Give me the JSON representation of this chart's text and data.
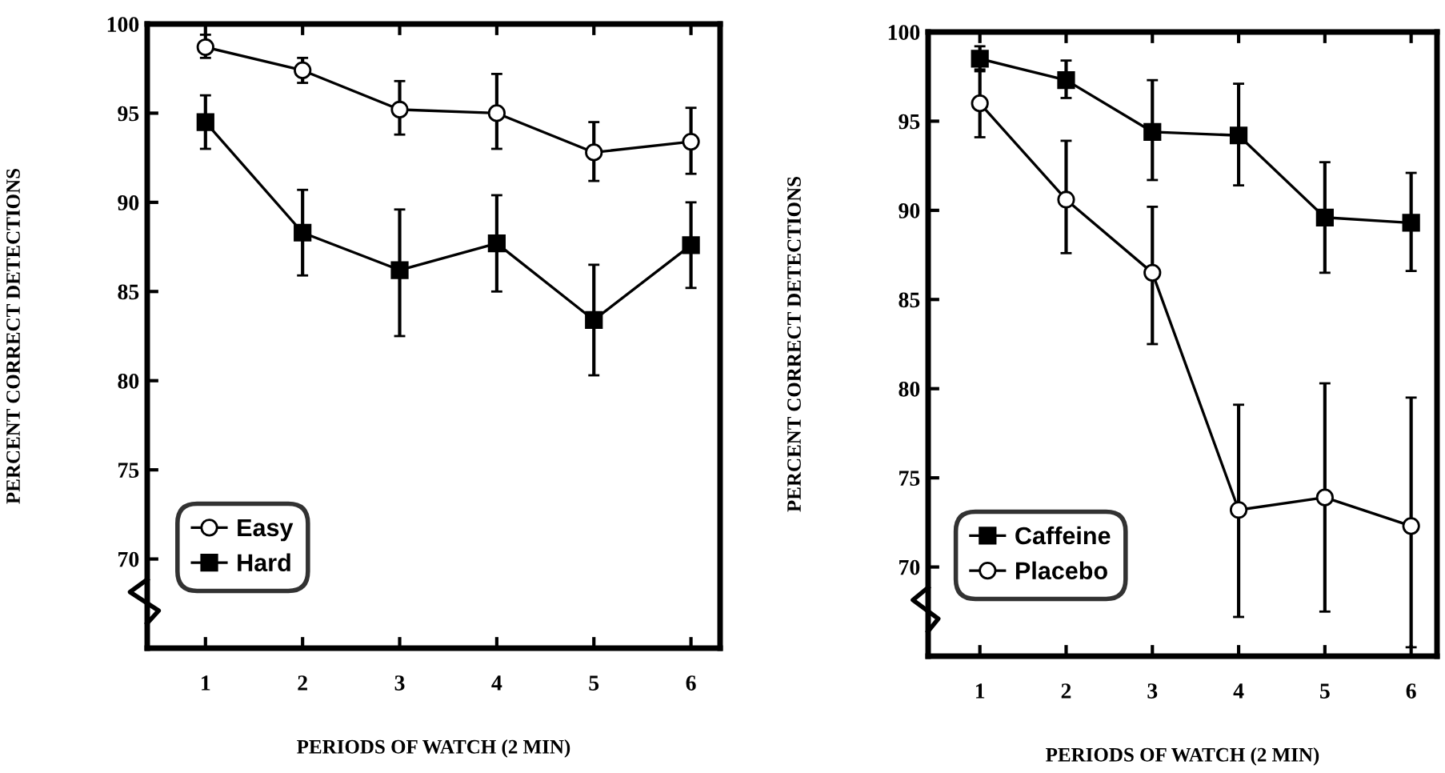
{
  "chart_data": [
    {
      "type": "line",
      "xlabel": "PERIODS OF WATCH (2 MIN)",
      "ylabel": "PERCENT CORRECT DETECTIONS",
      "xlim": [
        0.4,
        6.3
      ],
      "xticks": [
        1,
        2,
        3,
        4,
        5,
        6
      ],
      "ylim": [
        65,
        100
      ],
      "yticks": [
        70,
        75,
        80,
        85,
        90,
        95,
        100
      ],
      "grid": false,
      "legend": "bottom left",
      "line_style": "solid",
      "series": [
        {
          "name": "Easy",
          "color": "#000000",
          "marker": "circle",
          "x": [
            1,
            2,
            3,
            4,
            5,
            6
          ],
          "values": [
            98.7,
            97.4,
            95.2,
            95.0,
            92.8,
            93.4
          ],
          "errors": [
            [
              98.1,
              99.4
            ],
            [
              96.7,
              98.1
            ],
            [
              93.8,
              96.8
            ],
            [
              93.0,
              97.2
            ],
            [
              91.2,
              94.5
            ],
            [
              91.6,
              95.3
            ]
          ]
        },
        {
          "name": "Hard",
          "color": "#000000",
          "marker": "square",
          "x": [
            1,
            2,
            3,
            4,
            5,
            6
          ],
          "values": [
            94.5,
            88.3,
            86.2,
            87.7,
            83.4,
            87.6
          ],
          "errors": [
            [
              93.0,
              96.0
            ],
            [
              85.9,
              90.7
            ],
            [
              82.5,
              89.6
            ],
            [
              85.0,
              90.4
            ],
            [
              80.3,
              86.5
            ],
            [
              85.2,
              90.0
            ]
          ]
        }
      ]
    },
    {
      "type": "line",
      "xlabel": "PERIODS OF WATCH (2 MIN)",
      "ylabel": "PERCENT CORRECT DETECTIONS",
      "xlim": [
        0.4,
        6.3
      ],
      "xticks": [
        1,
        2,
        3,
        4,
        5,
        6
      ],
      "ylim": [
        65,
        100
      ],
      "yticks": [
        70,
        75,
        80,
        85,
        90,
        95,
        100
      ],
      "grid": false,
      "legend": "bottom left",
      "line_style": "solid",
      "series": [
        {
          "name": "Caffeine",
          "color": "#000000",
          "marker": "square",
          "x": [
            1,
            2,
            3,
            4,
            5,
            6
          ],
          "values": [
            98.5,
            97.3,
            94.4,
            94.2,
            89.6,
            89.3
          ],
          "errors": [
            [
              97.8,
              99.2
            ],
            [
              96.3,
              98.4
            ],
            [
              91.7,
              97.3
            ],
            [
              91.4,
              97.1
            ],
            [
              86.5,
              92.7
            ],
            [
              86.6,
              92.1
            ]
          ]
        },
        {
          "name": "Placebo",
          "color": "#000000",
          "marker": "circle",
          "x": [
            1,
            2,
            3,
            4,
            5,
            6
          ],
          "values": [
            96.0,
            90.6,
            86.5,
            73.2,
            73.9,
            72.3
          ],
          "errors": [
            1.9,
            [
              87.6,
              93.9
            ],
            [
              82.5,
              90.2
            ],
            [
              67.2,
              79.1
            ],
            [
              67.5,
              80.3
            ],
            [
              65.5,
              79.5
            ]
          ]
        }
      ]
    }
  ]
}
